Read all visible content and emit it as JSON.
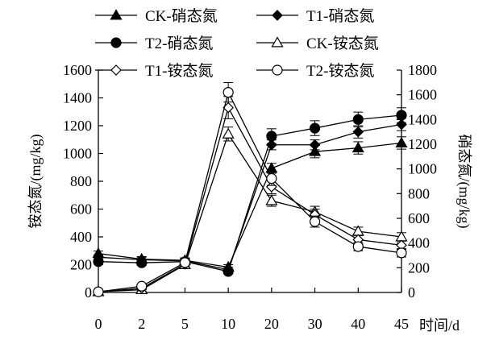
{
  "chart_data": {
    "type": "line",
    "categories": [
      "0",
      "2",
      "5",
      "10",
      "20",
      "30",
      "40",
      "45"
    ],
    "xlabel": "时间/d",
    "ylabel_left": "铵态氮/(mg/kg)",
    "ylabel_right": "硝态氮/(mg/kg)",
    "ylim_left": [
      0,
      1600
    ],
    "ylim_right": [
      0,
      1800
    ],
    "yticks_left": [
      0,
      200,
      400,
      600,
      800,
      1000,
      1200,
      1400,
      1600
    ],
    "yticks_right": [
      0,
      200,
      400,
      600,
      800,
      1000,
      1200,
      1400,
      1600,
      1800
    ],
    "grid": false,
    "legend_position": "top",
    "series": [
      {
        "name": "CK-硝态氮",
        "axis": "right",
        "marker": "triangle-filled",
        "values": [
          315,
          270,
          260,
          205,
          1005,
          1140,
          1170,
          1210
        ],
        "errors": [
          20,
          20,
          20,
          20,
          40,
          50,
          50,
          50
        ]
      },
      {
        "name": "T1-硝态氮",
        "axis": "right",
        "marker": "diamond-filled",
        "values": [
          285,
          265,
          255,
          185,
          1195,
          1195,
          1300,
          1360
        ],
        "errors": [
          20,
          20,
          20,
          20,
          40,
          40,
          50,
          50
        ]
      },
      {
        "name": "T2-硝态氮",
        "axis": "right",
        "marker": "circle-filled",
        "values": [
          250,
          240,
          250,
          170,
          1265,
          1330,
          1400,
          1435
        ],
        "errors": [
          20,
          20,
          20,
          20,
          60,
          60,
          60,
          60
        ]
      },
      {
        "name": "CK-铵态氮",
        "axis": "left",
        "marker": "triangle-open",
        "values": [
          5,
          20,
          200,
          1140,
          660,
          580,
          440,
          400
        ],
        "errors": [
          5,
          10,
          20,
          50,
          40,
          40,
          30,
          30
        ]
      },
      {
        "name": "T1-铵态氮",
        "axis": "left",
        "marker": "diamond-open",
        "values": [
          5,
          30,
          205,
          1330,
          760,
          560,
          380,
          340
        ],
        "errors": [
          5,
          10,
          20,
          80,
          50,
          40,
          30,
          30
        ]
      },
      {
        "name": "T2-铵态氮",
        "axis": "left",
        "marker": "circle-open",
        "values": [
          5,
          45,
          215,
          1440,
          820,
          510,
          330,
          285
        ],
        "errors": [
          5,
          10,
          20,
          70,
          50,
          40,
          30,
          30
        ]
      }
    ]
  }
}
